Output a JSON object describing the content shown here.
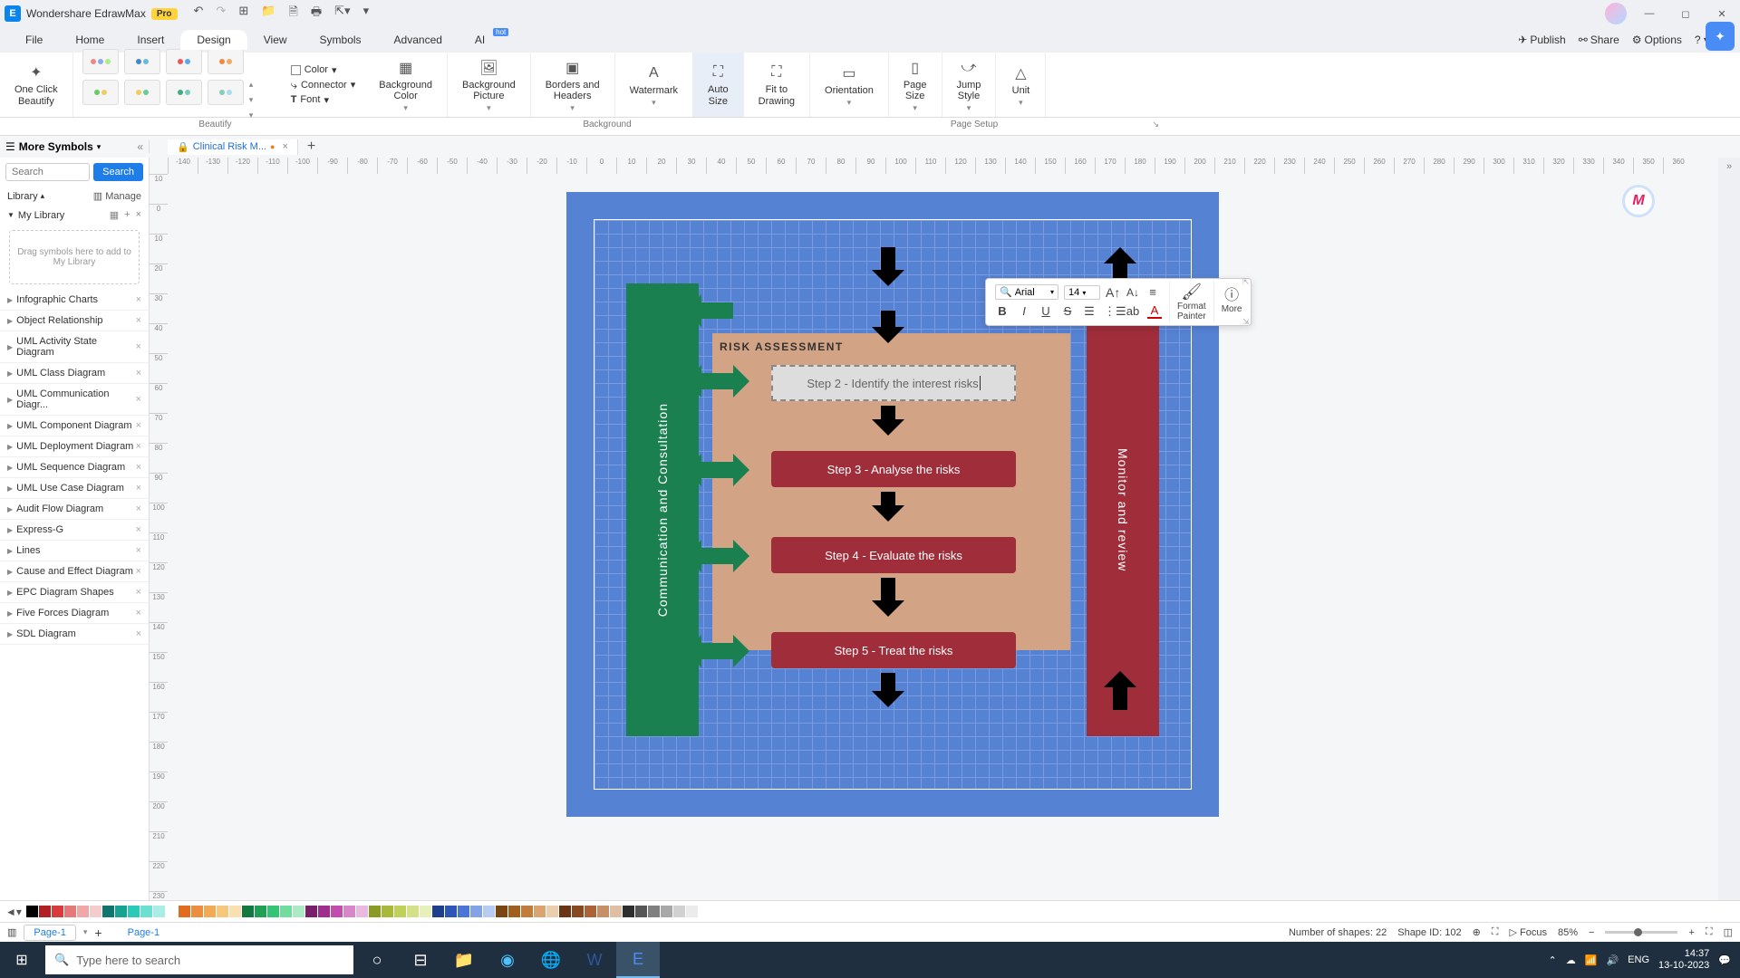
{
  "app": {
    "title": "Wondershare EdrawMax",
    "badge": "Pro"
  },
  "menu": {
    "items": [
      "File",
      "Home",
      "Insert",
      "Design",
      "View",
      "Symbols",
      "Advanced",
      "AI"
    ],
    "active": 3,
    "hot_index": 7,
    "right": {
      "publish": "Publish",
      "share": "Share",
      "options": "Options"
    }
  },
  "ribbon": {
    "oneclick": "One Click\nBeautify",
    "format": {
      "color": "Color",
      "connector": "Connector",
      "font": "Font"
    },
    "bg_color": "Background\nColor",
    "bg_pic": "Background\nPicture",
    "borders": "Borders and\nHeaders",
    "watermark": "Watermark",
    "autosize": "Auto\nSize",
    "fit": "Fit to\nDrawing",
    "orient": "Orientation",
    "psize": "Page\nSize",
    "jump": "Jump\nStyle",
    "unit": "Unit",
    "groups": {
      "beautify": "Beautify",
      "background": "Background",
      "setup": "Page Setup"
    }
  },
  "doc": {
    "tab_name": "Clinical Risk M..."
  },
  "sidebar": {
    "header": "More Symbols",
    "search_placeholder": "Search",
    "search_btn": "Search",
    "library_label": "Library",
    "manage": "Manage",
    "mylib": "My Library",
    "drop_text": "Drag symbols here to add to My Library",
    "items": [
      "Infographic Charts",
      "Object Relationship",
      "UML Activity State Diagram",
      "UML Class Diagram",
      "UML Communication Diagr...",
      "UML Component Diagram",
      "UML Deployment Diagram",
      "UML Sequence Diagram",
      "UML Use Case Diagram",
      "Audit Flow Diagram",
      "Express-G",
      "Lines",
      "Cause and Effect Diagram",
      "EPC Diagram Shapes",
      "Five Forces Diagram",
      "SDL Diagram"
    ]
  },
  "ruler_h": [
    "-140",
    "-130",
    "-120",
    "-110",
    "-100",
    "-90",
    "-80",
    "-70",
    "-60",
    "-50",
    "-40",
    "-30",
    "-20",
    "-10",
    "0",
    "10",
    "20",
    "30",
    "40",
    "50",
    "60",
    "70",
    "80",
    "90",
    "100",
    "110",
    "120",
    "130",
    "140",
    "150",
    "160",
    "170",
    "180",
    "190",
    "200",
    "210",
    "220",
    "230",
    "240",
    "250",
    "260",
    "270",
    "280",
    "290",
    "300",
    "310",
    "320",
    "330",
    "340",
    "350",
    "360"
  ],
  "ruler_v": [
    "10",
    "0",
    "10",
    "20",
    "30",
    "40",
    "50",
    "60",
    "70",
    "80",
    "90",
    "100",
    "110",
    "120",
    "130",
    "140",
    "150",
    "160",
    "170",
    "180",
    "190",
    "200",
    "210",
    "220",
    "230"
  ],
  "diagram": {
    "left_bar": "Communication and Consultation",
    "right_bar": "Monitor and review",
    "assess_title": "RISK ASSESSMENT",
    "step2": "Step 2 - Identify the interest risks",
    "step3": "Step 3 - Analyse the risks",
    "step4": "Step 4 - Evaluate the risks",
    "step5": "Step 5 - Treat the risks",
    "colors": {
      "page_bg": "#5682d4",
      "green": "#1b8050",
      "red": "#9f2d3a",
      "tan": "#d2a384"
    }
  },
  "float_tb": {
    "font": "Arial",
    "size": "14",
    "painter": "Format\nPainter",
    "more": "More"
  },
  "colors": [
    "#000000",
    "#b01f24",
    "#d93a3c",
    "#e67878",
    "#f0a7a7",
    "#f5cccc",
    "#0e766e",
    "#16a394",
    "#2ac9b8",
    "#6ae0d3",
    "#a9eee6",
    "#ffffff",
    "#e06c22",
    "#ec8d3f",
    "#f2ab54",
    "#f6c77d",
    "#fae0b0",
    "#127a3f",
    "#1fa055",
    "#33c474",
    "#72db9e",
    "#aceac6",
    "#7a1f6b",
    "#a02e8e",
    "#c24db0",
    "#d985ca",
    "#ebb8e2",
    "#8a9a25",
    "#a7b93a",
    "#bfd159",
    "#d4e188",
    "#e7efba",
    "#1e3f8b",
    "#2d56b8",
    "#4a76d6",
    "#82a3e5",
    "#b8cbf1",
    "#7a4512",
    "#a05f1e",
    "#c27b3a",
    "#d9a470",
    "#ebcead",
    "#6b3513",
    "#8a4820",
    "#ab6236",
    "#c78e6a",
    "#e0bea3",
    "#2e2e2e",
    "#565656",
    "#7f7f7f",
    "#a8a8a8",
    "#d1d1d1",
    "#ebebeb"
  ],
  "status": {
    "page": "Page-1",
    "shapes_lbl": "Number of shapes:",
    "shapes": "22",
    "shapeid_lbl": "Shape ID:",
    "shapeid": "102",
    "focus": "Focus",
    "zoom": "85%"
  },
  "taskbar": {
    "search": "Type here to search",
    "lang": "ENG",
    "time": "14:37",
    "date": "13-10-2023"
  }
}
